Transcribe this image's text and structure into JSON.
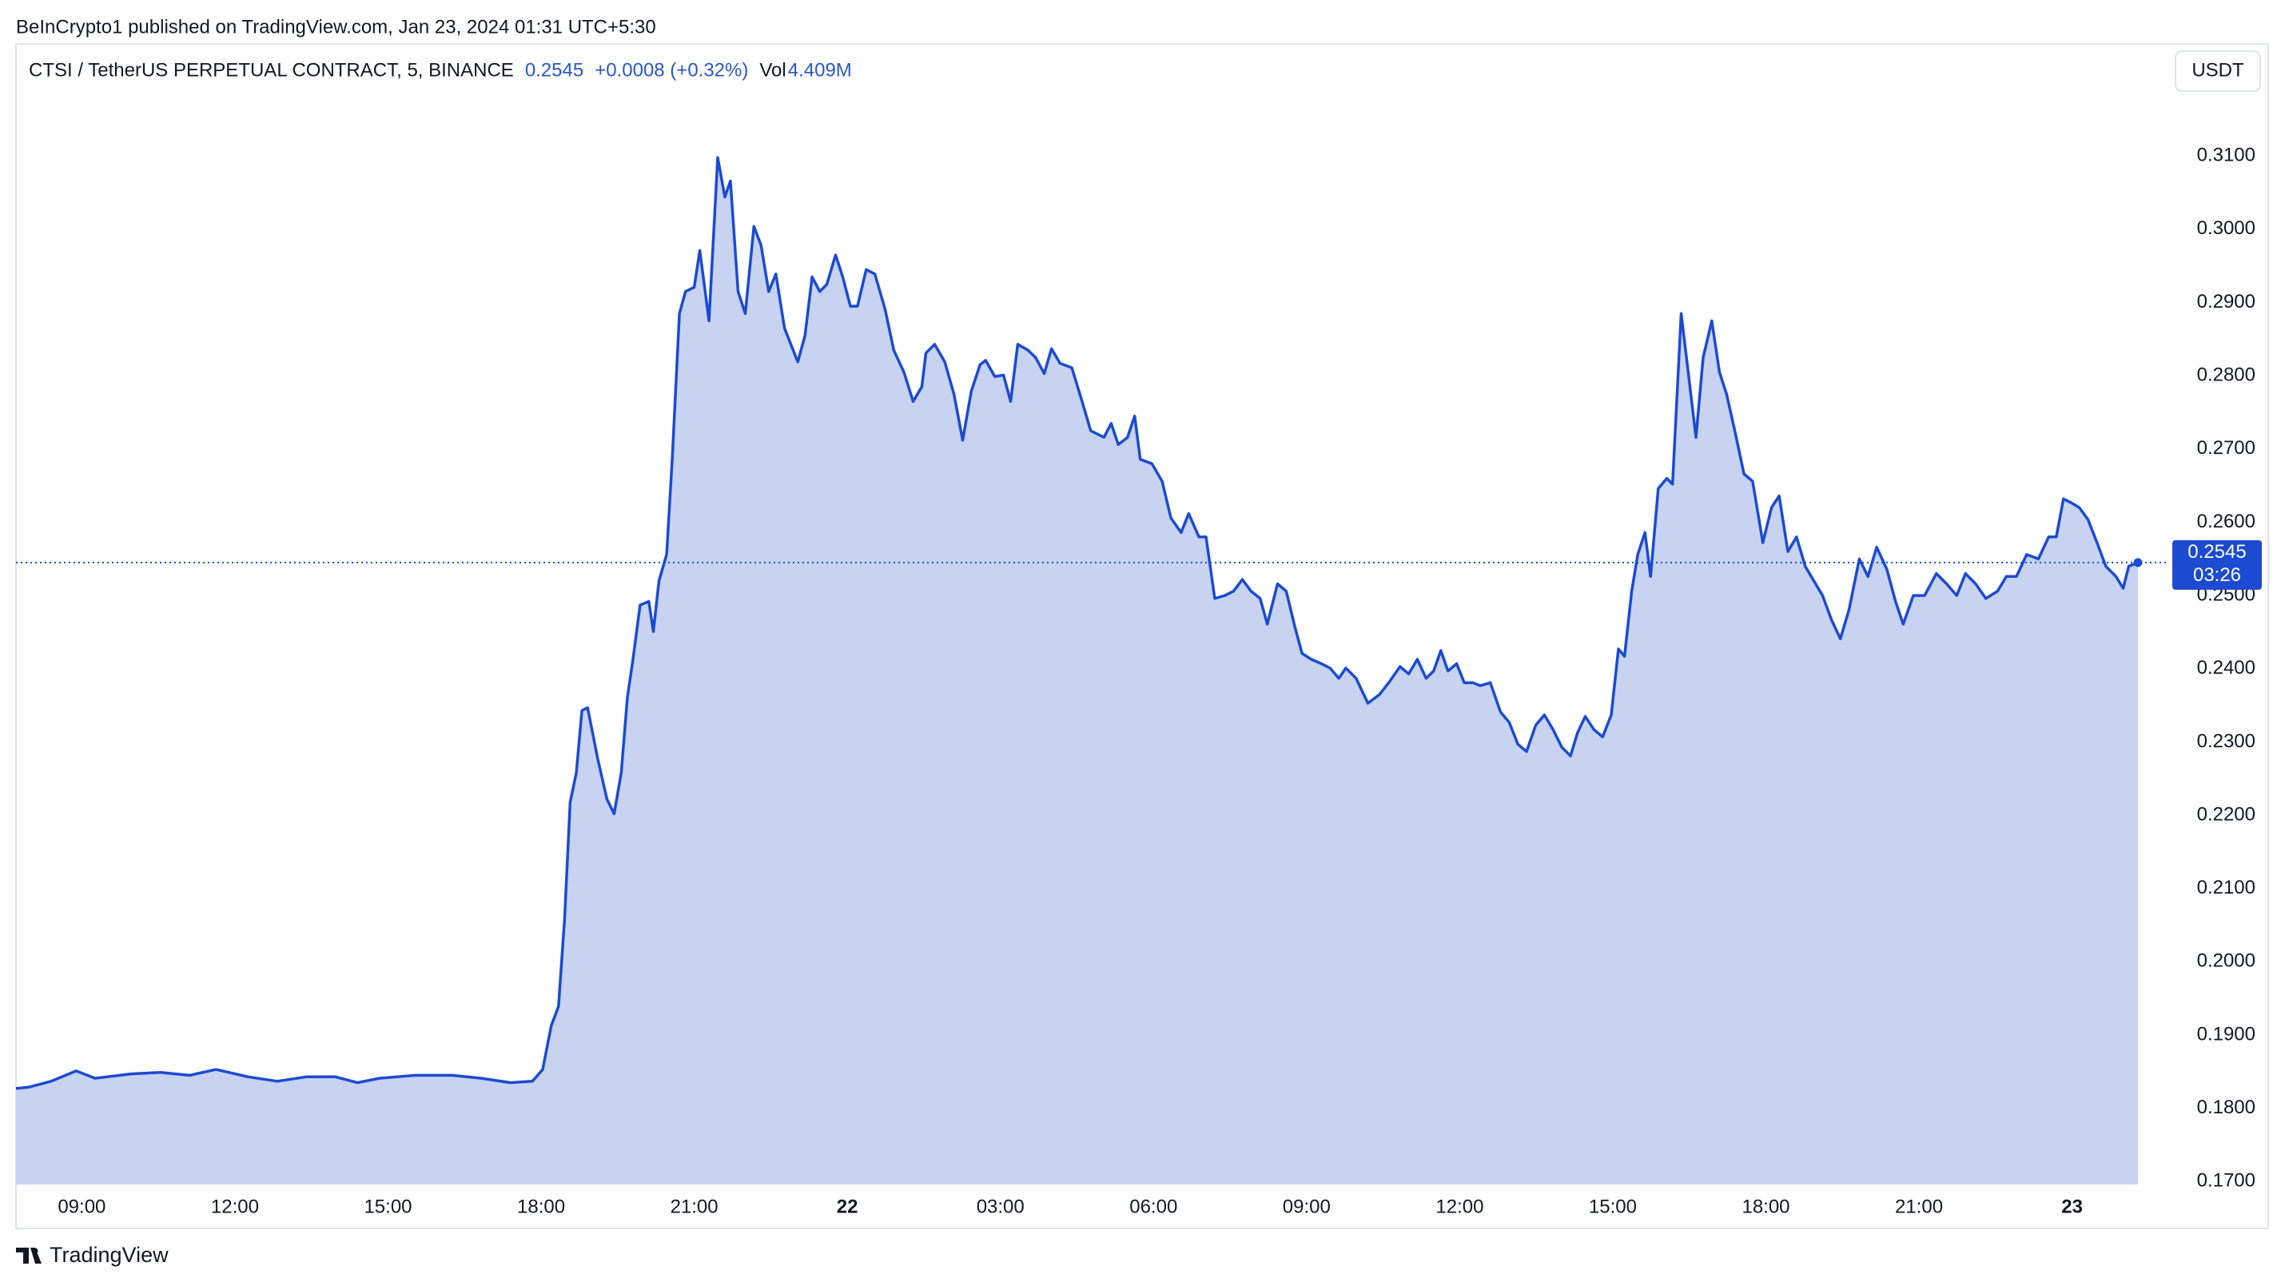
{
  "header": {
    "published": "BeInCrypto1 published on TradingView.com, Jan 23, 2024 01:31 UTC+5:30"
  },
  "footer": {
    "brand": "TradingView"
  },
  "chart_data": {
    "type": "area",
    "symbol": "CTSI / TetherUS PERPETUAL CONTRACT, 5, BINANCE",
    "last_price": 0.2545,
    "change": "+0.0008 (+0.32%)",
    "volume_label": "Vol",
    "volume": "4.409M",
    "currency": "USDT",
    "countdown": "03:26",
    "color": "#1c4bd1",
    "fill": "#c8d3f1",
    "grid": false,
    "xlim": [
      7.71,
      49.29
    ],
    "ylim": [
      0.1696,
      0.3253
    ],
    "xticks": [
      {
        "value": 9,
        "label": "09:00"
      },
      {
        "value": 12,
        "label": "12:00"
      },
      {
        "value": 15,
        "label": "15:00"
      },
      {
        "value": 18,
        "label": "18:00"
      },
      {
        "value": 21,
        "label": "21:00"
      },
      {
        "value": 24,
        "label": "22"
      },
      {
        "value": 27,
        "label": "03:00"
      },
      {
        "value": 30,
        "label": "06:00"
      },
      {
        "value": 33,
        "label": "09:00"
      },
      {
        "value": 36,
        "label": "12:00"
      },
      {
        "value": 39,
        "label": "15:00"
      },
      {
        "value": 42,
        "label": "18:00"
      },
      {
        "value": 45,
        "label": "21:00"
      },
      {
        "value": 48,
        "label": "23"
      }
    ],
    "yticks": [
      {
        "value": 0.17,
        "label": "0.1700"
      },
      {
        "value": 0.18,
        "label": "0.1800"
      },
      {
        "value": 0.19,
        "label": "0.1900"
      },
      {
        "value": 0.2,
        "label": "0.2000"
      },
      {
        "value": 0.21,
        "label": "0.2100"
      },
      {
        "value": 0.22,
        "label": "0.2200"
      },
      {
        "value": 0.23,
        "label": "0.2300"
      },
      {
        "value": 0.24,
        "label": "0.2400"
      },
      {
        "value": 0.25,
        "label": "0.2500"
      },
      {
        "value": 0.26,
        "label": "0.2600"
      },
      {
        "value": 0.27,
        "label": "0.2700"
      },
      {
        "value": 0.28,
        "label": "0.2800"
      },
      {
        "value": 0.29,
        "label": "0.2900"
      },
      {
        "value": 0.3,
        "label": "0.3000"
      },
      {
        "value": 0.31,
        "label": "0.3100"
      }
    ],
    "x": [
      7.71,
      7.97,
      8.4,
      8.89,
      9.26,
      9.97,
      10.54,
      11.11,
      11.63,
      12.26,
      12.83,
      13.4,
      13.97,
      14.4,
      14.83,
      15.54,
      16.26,
      16.83,
      17.4,
      17.83,
      18.03,
      18.2,
      18.34,
      18.46,
      18.57,
      18.69,
      18.8,
      18.91,
      19.11,
      19.29,
      19.43,
      19.57,
      19.69,
      19.8,
      19.94,
      20.11,
      20.2,
      20.31,
      20.46,
      20.57,
      20.71,
      20.83,
      21.0,
      21.11,
      21.29,
      21.46,
      21.6,
      21.71,
      21.86,
      22.0,
      22.17,
      22.31,
      22.46,
      22.6,
      22.77,
      23.03,
      23.17,
      23.31,
      23.46,
      23.6,
      23.77,
      23.91,
      24.06,
      24.2,
      24.37,
      24.54,
      24.74,
      24.91,
      25.11,
      25.29,
      25.46,
      25.54,
      25.71,
      25.91,
      26.09,
      26.26,
      26.43,
      26.6,
      26.71,
      26.89,
      27.06,
      27.2,
      27.34,
      27.54,
      27.69,
      27.86,
      28.0,
      28.17,
      28.4,
      28.6,
      28.77,
      29.03,
      29.17,
      29.31,
      29.49,
      29.63,
      29.74,
      29.97,
      30.17,
      30.34,
      30.54,
      30.69,
      30.89,
      31.03,
      31.2,
      31.4,
      31.57,
      31.74,
      31.91,
      32.09,
      32.23,
      32.43,
      32.6,
      32.77,
      32.91,
      33.09,
      33.29,
      33.46,
      33.63,
      33.77,
      33.97,
      34.2,
      34.43,
      34.63,
      34.83,
      35.0,
      35.17,
      35.34,
      35.49,
      35.63,
      35.77,
      35.94,
      36.09,
      36.26,
      36.4,
      36.6,
      36.8,
      36.97,
      37.14,
      37.31,
      37.49,
      37.66,
      37.83,
      38.0,
      38.17,
      38.31,
      38.46,
      38.63,
      38.8,
      38.97,
      39.11,
      39.23,
      39.37,
      39.49,
      39.63,
      39.74,
      39.89,
      40.06,
      40.17,
      40.34,
      40.46,
      40.63,
      40.77,
      40.94,
      41.09,
      41.23,
      41.4,
      41.57,
      41.74,
      41.94,
      42.11,
      42.26,
      42.43,
      42.6,
      42.77,
      42.94,
      43.11,
      43.29,
      43.46,
      43.63,
      43.83,
      44.0,
      44.17,
      44.37,
      44.54,
      44.69,
      44.89,
      45.11,
      45.34,
      45.54,
      45.74,
      45.91,
      46.11,
      46.31,
      46.54,
      46.71,
      46.91,
      47.11,
      47.34,
      47.54,
      47.69,
      47.83,
      48.0,
      48.14,
      48.31,
      48.49,
      48.66,
      48.86,
      49.0,
      49.11,
      49.29
    ],
    "values": [
      0.1827,
      0.1829,
      0.1837,
      0.1851,
      0.1841,
      0.1847,
      0.1849,
      0.1845,
      0.1853,
      0.1843,
      0.1837,
      0.1843,
      0.1843,
      0.1835,
      0.1841,
      0.1845,
      0.1845,
      0.1841,
      0.1835,
      0.1837,
      0.1853,
      0.1913,
      0.1939,
      0.2058,
      0.2218,
      0.2258,
      0.2343,
      0.2347,
      0.2277,
      0.2222,
      0.2202,
      0.2258,
      0.2361,
      0.2413,
      0.2487,
      0.2492,
      0.2451,
      0.252,
      0.2556,
      0.2686,
      0.2885,
      0.2915,
      0.2921,
      0.2971,
      0.2875,
      0.3098,
      0.3044,
      0.3066,
      0.2915,
      0.2885,
      0.3004,
      0.2978,
      0.2915,
      0.2939,
      0.2865,
      0.2819,
      0.2855,
      0.2935,
      0.2915,
      0.2925,
      0.2965,
      0.2935,
      0.2895,
      0.2895,
      0.2945,
      0.2939,
      0.2891,
      0.2835,
      0.2805,
      0.2765,
      0.2785,
      0.2831,
      0.2843,
      0.2819,
      0.2775,
      0.2712,
      0.2779,
      0.2815,
      0.2821,
      0.2799,
      0.2801,
      0.2765,
      0.2843,
      0.2835,
      0.2825,
      0.2803,
      0.2837,
      0.2817,
      0.2811,
      0.2765,
      0.2725,
      0.2716,
      0.2735,
      0.2706,
      0.2716,
      0.2745,
      0.2686,
      0.268,
      0.2656,
      0.2606,
      0.2586,
      0.2612,
      0.258,
      0.258,
      0.2496,
      0.25,
      0.2506,
      0.2522,
      0.2506,
      0.2496,
      0.2461,
      0.2516,
      0.2506,
      0.2457,
      0.2421,
      0.2413,
      0.2407,
      0.2401,
      0.2387,
      0.2401,
      0.2387,
      0.2353,
      0.2365,
      0.2383,
      0.2403,
      0.2393,
      0.2413,
      0.2387,
      0.2397,
      0.2425,
      0.2397,
      0.2407,
      0.2381,
      0.2381,
      0.2377,
      0.2381,
      0.2341,
      0.2327,
      0.2297,
      0.2287,
      0.2323,
      0.2337,
      0.2317,
      0.2293,
      0.2281,
      0.2313,
      0.2335,
      0.2317,
      0.2307,
      0.2337,
      0.2427,
      0.2417,
      0.2506,
      0.2556,
      0.2586,
      0.2526,
      0.2646,
      0.266,
      0.2652,
      0.2885,
      0.2815,
      0.2716,
      0.2825,
      0.2875,
      0.2805,
      0.2775,
      0.2722,
      0.2666,
      0.2656,
      0.2572,
      0.262,
      0.2636,
      0.256,
      0.258,
      0.254,
      0.252,
      0.25,
      0.2466,
      0.2441,
      0.2481,
      0.255,
      0.2526,
      0.2566,
      0.2536,
      0.2492,
      0.2461,
      0.25,
      0.25,
      0.253,
      0.2516,
      0.25,
      0.253,
      0.2516,
      0.2496,
      0.2506,
      0.2526,
      0.2526,
      0.2556,
      0.255,
      0.258,
      0.258,
      0.2632,
      0.2626,
      0.262,
      0.2604,
      0.2572,
      0.254,
      0.2526,
      0.251,
      0.254,
      0.2545
    ]
  }
}
